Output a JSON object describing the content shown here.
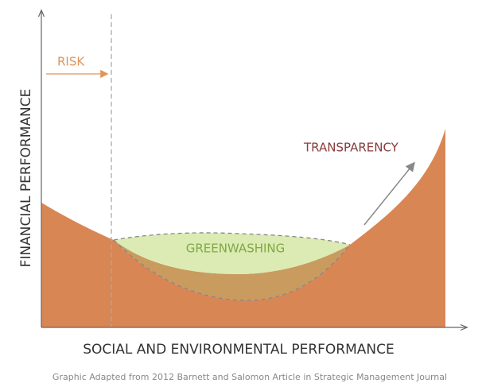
{
  "y_axis_label": "FINANCIAL  PERFORMANCE",
  "x_axis_label": "SOCIAL AND ENVIRONMENTAL PERFORMANCE",
  "annotations": {
    "risk": "RISK",
    "greenwashing": "GREENWASHING",
    "transparency": "TRANSPARENCY"
  },
  "caption": "Graphic Adapted from 2012 Barnett and Salomon Article in Strategic Management Journal"
}
